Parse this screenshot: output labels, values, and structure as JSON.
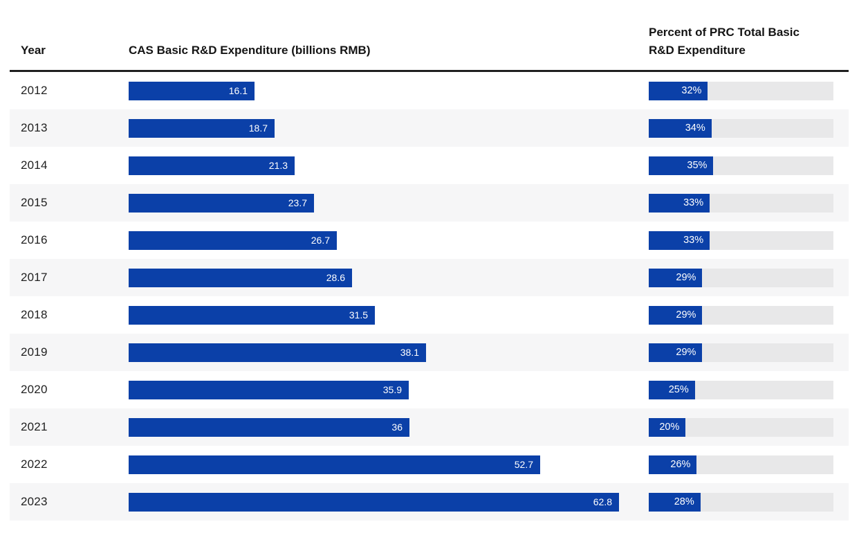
{
  "table": {
    "columns": {
      "year": "Year",
      "expenditure": "CAS Basic R&D Expenditure (billions RMB)",
      "percent": "Percent of PRC Total Basic R&D Expenditure"
    },
    "max_value": 62.8,
    "rows": [
      {
        "year": "2012",
        "value": 16.1,
        "value_label": "16.1",
        "pct": 32,
        "pct_label": "32%"
      },
      {
        "year": "2013",
        "value": 18.7,
        "value_label": "18.7",
        "pct": 34,
        "pct_label": "34%"
      },
      {
        "year": "2014",
        "value": 21.3,
        "value_label": "21.3",
        "pct": 35,
        "pct_label": "35%"
      },
      {
        "year": "2015",
        "value": 23.7,
        "value_label": "23.7",
        "pct": 33,
        "pct_label": "33%"
      },
      {
        "year": "2016",
        "value": 26.7,
        "value_label": "26.7",
        "pct": 33,
        "pct_label": "33%"
      },
      {
        "year": "2017",
        "value": 28.6,
        "value_label": "28.6",
        "pct": 29,
        "pct_label": "29%"
      },
      {
        "year": "2018",
        "value": 31.5,
        "value_label": "31.5",
        "pct": 29,
        "pct_label": "29%"
      },
      {
        "year": "2019",
        "value": 38.1,
        "value_label": "38.1",
        "pct": 29,
        "pct_label": "29%"
      },
      {
        "year": "2020",
        "value": 35.9,
        "value_label": "35.9",
        "pct": 25,
        "pct_label": "25%"
      },
      {
        "year": "2021",
        "value": 36,
        "value_label": "36",
        "pct": 20,
        "pct_label": "20%"
      },
      {
        "year": "2022",
        "value": 52.7,
        "value_label": "52.7",
        "pct": 26,
        "pct_label": "26%"
      },
      {
        "year": "2023",
        "value": 62.8,
        "value_label": "62.8",
        "pct": 28,
        "pct_label": "28%"
      }
    ]
  },
  "colors": {
    "bar_blue": "#0b40a8",
    "track_gray": "#e8e8e9",
    "row_stripe": "#f6f6f7",
    "header_rule": "#1f1f1f"
  },
  "chart_data": {
    "type": "bar",
    "orientation": "horizontal",
    "title": "",
    "categories": [
      "2012",
      "2013",
      "2014",
      "2015",
      "2016",
      "2017",
      "2018",
      "2019",
      "2020",
      "2021",
      "2022",
      "2023"
    ],
    "series": [
      {
        "name": "CAS Basic R&D Expenditure (billions RMB)",
        "values": [
          16.1,
          18.7,
          21.3,
          23.7,
          26.7,
          28.6,
          31.5,
          38.1,
          35.9,
          36,
          52.7,
          62.8
        ],
        "xlim": [
          0,
          62.8
        ]
      },
      {
        "name": "Percent of PRC Total Basic R&D Expenditure",
        "values": [
          32,
          34,
          35,
          33,
          33,
          29,
          29,
          29,
          25,
          20,
          26,
          28
        ],
        "unit": "%",
        "xlim": [
          0,
          100
        ]
      }
    ],
    "legend_position": "column-headers",
    "grid": false,
    "data_labels": true
  }
}
